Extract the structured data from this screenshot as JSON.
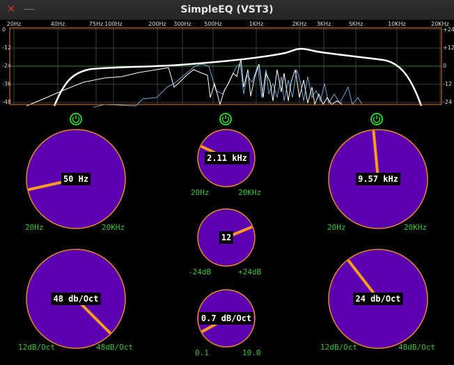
{
  "window": {
    "title": "SimpleEQ (VST3)",
    "close_glyph": "✕",
    "minimize_glyph": "—"
  },
  "analyzer": {
    "freq_labels": [
      "20Hz",
      "40Hz",
      "75Hz",
      "100Hz",
      "200Hz",
      "300Hz",
      "500Hz",
      "1KHz",
      "2KHz",
      "3KHz",
      "5KHz",
      "10KHz",
      "20KHz"
    ],
    "db_left": [
      "0",
      "-12",
      "-24",
      "-36",
      "-48"
    ],
    "db_right": [
      "+24",
      "+12",
      "0",
      "-12",
      "-24"
    ],
    "colors": {
      "grid": "#3b3b3b",
      "zero_line": "#3d7d3d",
      "border": "#e07b1b",
      "response": "#ffffff",
      "left_channel": "#ffffff",
      "right_channel": "#6aa6d8"
    }
  },
  "bands": {
    "low_cut": {
      "bypass_icon": "power-icon",
      "freq": {
        "value": "50 Hz",
        "min": "20Hz",
        "max": "20KHz",
        "fraction": 0.12
      },
      "slope": {
        "value": "48 db/Oct",
        "min": "12dB/Oct",
        "max": "48dB/Oct",
        "fraction": 1.0
      }
    },
    "peak": {
      "bypass_icon": "power-icon",
      "freq": {
        "value": "2.11 kHz",
        "min": "20Hz",
        "max": "20KHz",
        "fraction": 0.26
      },
      "gain": {
        "value": "12",
        "min": "-24dB",
        "max": "+24dB",
        "fraction": 0.75
      },
      "quality": {
        "value": "0.7 dB/Oct",
        "min": "0.1",
        "max": "10.0",
        "fraction": 0.06
      }
    },
    "high_cut": {
      "bypass_icon": "power-icon",
      "freq": {
        "value": "9.57 kHz",
        "min": "20Hz",
        "max": "20KHz",
        "fraction": 0.48
      },
      "slope": {
        "value": "24 db/Oct",
        "min": "12dB/Oct",
        "max": "48dB/Oct",
        "fraction": 0.36
      }
    }
  },
  "knob_colors": {
    "fill": "#5a00b0",
    "rim": "#e88a1c",
    "pointer": "#ff9c1c",
    "label": "#39c43a",
    "power": "#2fcc2f"
  }
}
